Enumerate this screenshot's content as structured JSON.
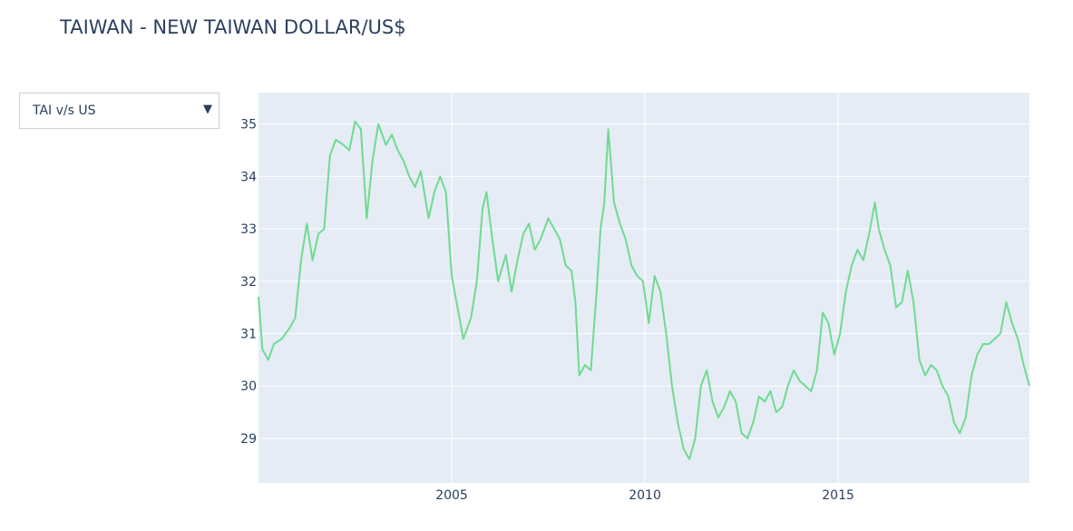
{
  "page": {
    "title": "TAIWAN - NEW TAIWAN DOLLAR/US$"
  },
  "dropdown": {
    "selected": "TAI v/s US",
    "caret_icon": "caret-down-icon"
  },
  "colors": {
    "plot_bg": "#e5ecf6",
    "grid": "#ffffff",
    "line": "#6edb8f",
    "text": "#2a3f5f"
  },
  "chart_data": {
    "type": "line",
    "title": "TAIWAN - NEW TAIWAN DOLLAR/US$",
    "xlabel": "",
    "ylabel": "",
    "xlim": [
      2000.0,
      2019.95
    ],
    "ylim": [
      28.15,
      35.6
    ],
    "x_ticks": [
      2005,
      2010,
      2015
    ],
    "x_tick_labels": [
      "2005",
      "2010",
      "2015"
    ],
    "y_ticks": [
      29,
      30,
      31,
      32,
      33,
      34,
      35
    ],
    "y_tick_labels": [
      "29",
      "30",
      "31",
      "32",
      "33",
      "34",
      "35"
    ],
    "grid": true,
    "legend": "none",
    "series": [
      {
        "x": [
          2000.0,
          2000.1,
          2000.25,
          2000.4,
          2000.6,
          2000.8,
          2000.95,
          2001.1,
          2001.25,
          2001.4,
          2001.55,
          2001.7,
          2001.85,
          2002.0,
          2002.2,
          2002.35,
          2002.5,
          2002.65,
          2002.8,
          2002.95,
          2003.1,
          2003.3,
          2003.45,
          2003.6,
          2003.75,
          2003.9,
          2004.05,
          2004.2,
          2004.4,
          2004.55,
          2004.7,
          2004.85,
          2005.0,
          2005.15,
          2005.3,
          2005.5,
          2005.65,
          2005.8,
          2005.9,
          2006.05,
          2006.2,
          2006.4,
          2006.55,
          2006.7,
          2006.85,
          2007.0,
          2007.15,
          2007.3,
          2007.5,
          2007.65,
          2007.8,
          2007.95,
          2008.1,
          2008.2,
          2008.3,
          2008.45,
          2008.6,
          2008.75,
          2008.85,
          2008.95,
          2009.05,
          2009.2,
          2009.35,
          2009.5,
          2009.65,
          2009.8,
          2009.95,
          2010.1,
          2010.25,
          2010.4,
          2010.55,
          2010.7,
          2010.85,
          2011.0,
          2011.15,
          2011.3,
          2011.45,
          2011.6,
          2011.75,
          2011.9,
          2012.05,
          2012.2,
          2012.35,
          2012.5,
          2012.65,
          2012.8,
          2012.95,
          2013.1,
          2013.25,
          2013.4,
          2013.55,
          2013.7,
          2013.85,
          2014.0,
          2014.15,
          2014.3,
          2014.45,
          2014.6,
          2014.75,
          2014.9,
          2015.05,
          2015.2,
          2015.35,
          2015.5,
          2015.65,
          2015.8,
          2015.95,
          2016.05,
          2016.2,
          2016.35,
          2016.5,
          2016.65,
          2016.8,
          2016.95,
          2017.1,
          2017.25,
          2017.4,
          2017.55,
          2017.7,
          2017.85,
          2018.0,
          2018.15,
          2018.3,
          2018.45,
          2018.6,
          2018.75,
          2018.9,
          2019.05,
          2019.2,
          2019.35,
          2019.5,
          2019.65,
          2019.8,
          2019.95
        ],
        "y": [
          31.7,
          30.7,
          30.5,
          30.8,
          30.9,
          31.1,
          31.3,
          32.4,
          33.1,
          32.4,
          32.9,
          33.0,
          34.4,
          34.7,
          34.6,
          34.5,
          35.05,
          34.9,
          33.2,
          34.3,
          35.0,
          34.6,
          34.8,
          34.5,
          34.3,
          34.0,
          33.8,
          34.1,
          33.2,
          33.7,
          34.0,
          33.7,
          32.1,
          31.5,
          30.9,
          31.3,
          32.0,
          33.4,
          33.7,
          32.8,
          32.0,
          32.5,
          31.8,
          32.4,
          32.9,
          33.1,
          32.6,
          32.8,
          33.2,
          33.0,
          32.8,
          32.3,
          32.2,
          31.6,
          30.2,
          30.4,
          30.3,
          31.8,
          33.0,
          33.5,
          34.9,
          33.5,
          33.1,
          32.8,
          32.3,
          32.1,
          32.0,
          31.2,
          32.1,
          31.8,
          31.0,
          30.0,
          29.3,
          28.8,
          28.6,
          29.0,
          30.0,
          30.3,
          29.7,
          29.4,
          29.6,
          29.9,
          29.7,
          29.1,
          29.0,
          29.3,
          29.8,
          29.7,
          29.9,
          29.5,
          29.6,
          30.0,
          30.3,
          30.1,
          30.0,
          29.9,
          30.3,
          31.4,
          31.2,
          30.6,
          31.0,
          31.8,
          32.3,
          32.6,
          32.4,
          32.9,
          33.5,
          33.0,
          32.6,
          32.3,
          31.5,
          31.6,
          32.2,
          31.6,
          30.5,
          30.2,
          30.4,
          30.3,
          30.0,
          29.8,
          29.3,
          29.1,
          29.4,
          30.2,
          30.6,
          30.8,
          30.8,
          30.9,
          31.0,
          31.6,
          31.2,
          30.9,
          30.4,
          30.0
        ]
      }
    ]
  }
}
